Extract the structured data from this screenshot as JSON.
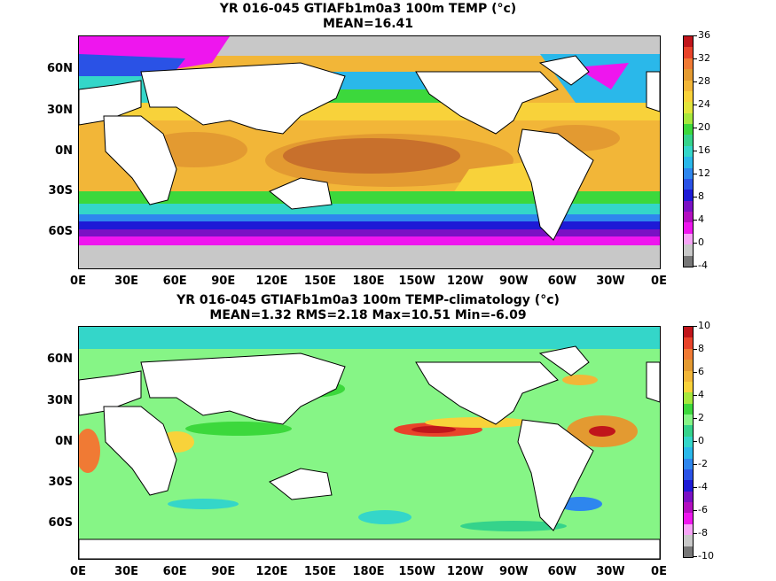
{
  "panels": [
    {
      "title_line1": "YR 016-045 GTIAFb1m0a3 100m TEMP (°c)",
      "title_line2": "MEAN=16.41",
      "lat_labels": [
        "60N",
        "30N",
        "0N",
        "30S",
        "60S"
      ],
      "lon_labels": [
        "0E",
        "30E",
        "60E",
        "90E",
        "120E",
        "150E",
        "180E",
        "150W",
        "120W",
        "90W",
        "60W",
        "30W",
        "0E"
      ],
      "colorbar_labels": [
        "36",
        "32",
        "28",
        "24",
        "20",
        "16",
        "12",
        "8",
        "4",
        "0",
        "-4"
      ],
      "colorbar_colors": [
        "#c0151b",
        "#e8432a",
        "#f07a34",
        "#e39a31",
        "#f2b638",
        "#f8d23a",
        "#e2e53b",
        "#a6e83c",
        "#3cd83c",
        "#35d38b",
        "#34d6c9",
        "#2ab8ea",
        "#2e86ee",
        "#2a52e6",
        "#1e1ad6",
        "#7a11c4",
        "#b30fc0",
        "#ee16ee",
        "#f7a4f7",
        "#c8c8c8",
        "#777777"
      ]
    },
    {
      "title_line1": "YR 016-045 GTIAFb1m0a3 100m TEMP-climatology (°c)",
      "title_line2": "MEAN=1.32   RMS=2.18   Max=10.51   Min=-6.09",
      "lat_labels": [
        "60N",
        "30N",
        "0N",
        "30S",
        "60S"
      ],
      "lon_labels": [
        "0E",
        "30E",
        "60E",
        "90E",
        "120E",
        "150E",
        "180E",
        "150W",
        "120W",
        "90W",
        "60W",
        "30W",
        "0E"
      ],
      "colorbar_labels": [
        "10",
        "8",
        "6",
        "4",
        "2",
        "0",
        "-2",
        "-4",
        "-6",
        "-8",
        "-10"
      ],
      "colorbar_colors": [
        "#c0151b",
        "#e8432a",
        "#f07a34",
        "#e39a31",
        "#f2b638",
        "#f8d23a",
        "#a6e83c",
        "#3cd83c",
        "#86f586",
        "#35d38b",
        "#34d6c9",
        "#2ab8ea",
        "#2e86ee",
        "#2a52e6",
        "#1e1ad6",
        "#7a11c4",
        "#b30fc0",
        "#ee16ee",
        "#f7a4f7",
        "#c8c8c8",
        "#777777"
      ]
    }
  ]
}
